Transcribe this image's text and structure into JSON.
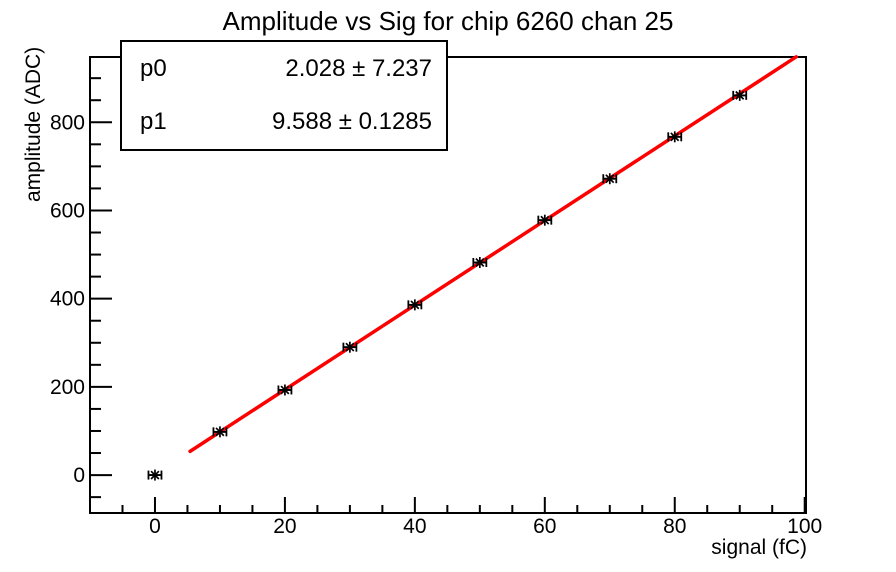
{
  "title": "Amplitude vs Sig for chip 6260 chan 25",
  "stats": {
    "rows": [
      {
        "name": "p0",
        "value": "2.028 ± 7.237"
      },
      {
        "name": "p1",
        "value": "9.588 ± 0.1285"
      }
    ]
  },
  "chart_data": {
    "type": "scatter",
    "title": "Amplitude vs Sig for chip 6260 chan 25",
    "xlabel": "signal (fC)",
    "ylabel": "amplitude (ADC)",
    "xlim": [
      -10,
      100.2
    ],
    "ylim": [
      -86,
      948
    ],
    "grid": false,
    "x_ticks": {
      "major": [
        0,
        20,
        40,
        60,
        80,
        100
      ],
      "labels": [
        "0",
        "20",
        "40",
        "60",
        "80",
        "100"
      ],
      "minor_step": 5
    },
    "y_ticks": {
      "major": [
        0,
        200,
        400,
        600,
        800
      ],
      "labels": [
        "0",
        "200",
        "400",
        "600",
        "800"
      ],
      "minor_step": 50
    },
    "points": {
      "x": [
        0,
        10,
        20,
        30,
        40,
        50,
        60,
        70,
        80,
        90
      ],
      "y": [
        0,
        98,
        193,
        290,
        386,
        482,
        578,
        672,
        767,
        861
      ],
      "xerr": 1,
      "marker": "asterisk",
      "color": "#000000"
    },
    "fit_line": {
      "p0": 2.028,
      "p1": 9.588,
      "x_start": 5.4,
      "x_end": 98.7,
      "color": "#ff0000"
    }
  },
  "colors": {
    "background": "#ffffff",
    "frame": "#000000",
    "marker": "#000000",
    "fit_line": "#ff0000",
    "text": "#000000"
  }
}
